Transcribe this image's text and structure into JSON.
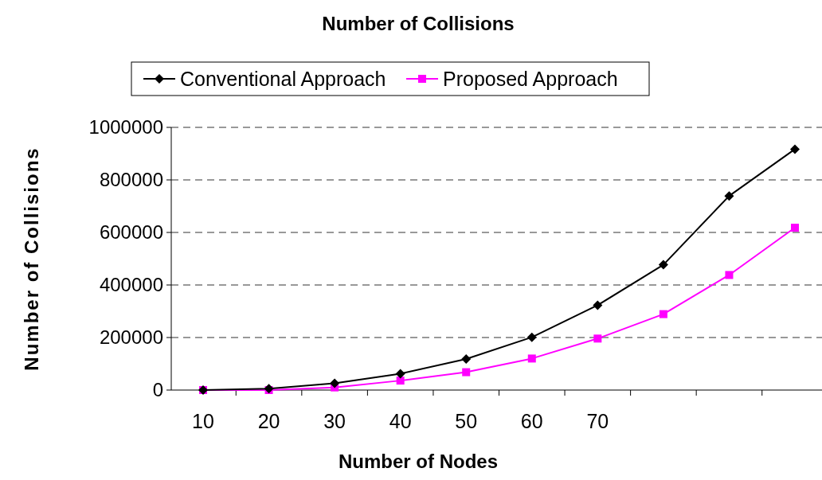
{
  "chart_data": {
    "type": "line",
    "title": "Number of Collisions",
    "xlabel": "Number of Nodes",
    "ylabel": "Number of Collisions",
    "categories": [
      "10",
      "20",
      "30",
      "40",
      "50",
      "60",
      "70",
      null,
      null,
      null
    ],
    "series": [
      {
        "name": "Conventional Approach",
        "color": "#000000",
        "marker": "diamond",
        "values": [
          0,
          5000,
          26000,
          62000,
          118000,
          201000,
          323000,
          477000,
          739000,
          917000
        ]
      },
      {
        "name": "Proposed Approach",
        "color": "#ff00ff",
        "marker": "square",
        "values": [
          0,
          0,
          10000,
          36000,
          68000,
          120000,
          196000,
          289000,
          438000,
          618000
        ]
      }
    ],
    "ylim": [
      0,
      1000000
    ],
    "yticks": [
      0,
      200000,
      400000,
      600000,
      800000,
      1000000
    ],
    "grid": "y",
    "legend": "top"
  }
}
